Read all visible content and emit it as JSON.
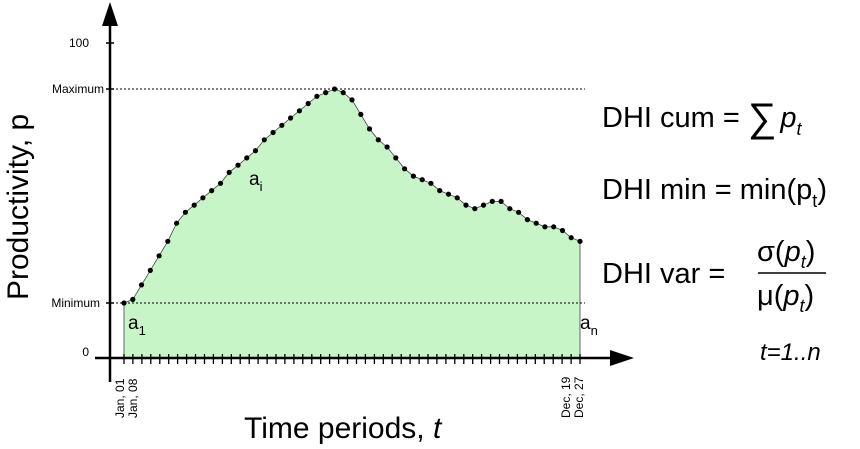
{
  "chart_data": {
    "type": "area",
    "xlabel_main": "Time periods, ",
    "xlabel_var": "t",
    "ylabel": "Productivity, p",
    "ylim": [
      0,
      100
    ],
    "y_ticks": [
      {
        "label": "0",
        "value": 0
      },
      {
        "label": "Minimum",
        "value": 21
      },
      {
        "label": "Maximum",
        "value": 80
      },
      {
        "label": "100",
        "value": 100
      }
    ],
    "x_tick_labels": [
      "Jan, 01",
      "Jan, 08",
      "Dec, 19",
      "Dec, 27"
    ],
    "x_period_count": 52,
    "series": [
      {
        "values": [
          21,
          22,
          26,
          30,
          34,
          38,
          43,
          46,
          48,
          50,
          52,
          54,
          57,
          59,
          61,
          63,
          66,
          68,
          70,
          72,
          74,
          76,
          78,
          79,
          80,
          79,
          77,
          73,
          69,
          66,
          64,
          61,
          58,
          56,
          55,
          54,
          52,
          51,
          50,
          48,
          47,
          48,
          49,
          49,
          47,
          46,
          44,
          43,
          42,
          42,
          41,
          39,
          38
        ]
      }
    ],
    "annotations": {
      "a1": {
        "base": "a",
        "sub": "1"
      },
      "ai": {
        "base": "a",
        "sub": "i"
      },
      "an": {
        "base": "a",
        "sub": "n"
      }
    },
    "formulas": {
      "cum_lhs": "DHI cum = ",
      "sum_symbol": "∑",
      "cum_var": "p",
      "cum_sub": "t",
      "min_lhs": "DHI min = min(p",
      "min_sub": "t",
      "min_close": ")",
      "var_lhs": "DHI var = ",
      "var_num_open": "σ(",
      "var_num_var": "p",
      "var_num_sub": "t",
      "var_num_close": ")",
      "var_den_open": "μ(",
      "var_den_var": "p",
      "var_den_sub": "t",
      "var_den_close": ")",
      "range": "t=1..n"
    },
    "colors": {
      "fill": "#c8f5c8",
      "line": "#000000",
      "dot": "#000000"
    },
    "grid": false,
    "legend": "none"
  }
}
